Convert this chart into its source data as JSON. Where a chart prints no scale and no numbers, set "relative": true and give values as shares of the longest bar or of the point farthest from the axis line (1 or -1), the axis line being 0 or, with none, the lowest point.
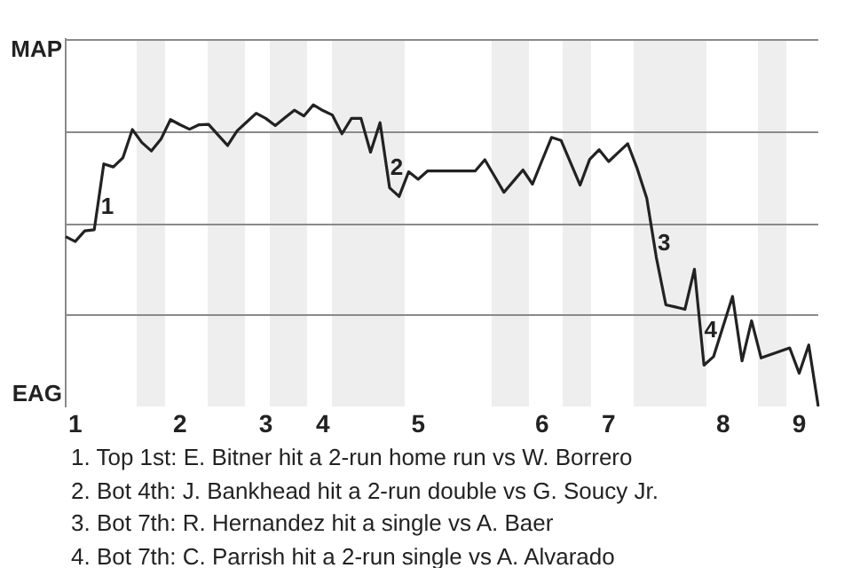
{
  "chart_data": {
    "type": "line",
    "relative": true,
    "color": "#222222",
    "legend": false,
    "grid": "y",
    "marker": "none",
    "line_style": "solid",
    "categories": [
      null,
      "1",
      null,
      null,
      null,
      null,
      null,
      null,
      null,
      null,
      null,
      null,
      "2",
      null,
      null,
      null,
      null,
      null,
      null,
      null,
      null,
      "3",
      null,
      null,
      null,
      null,
      null,
      "4",
      null,
      null,
      null,
      null,
      null,
      null,
      null,
      null,
      null,
      "5",
      null,
      null,
      null,
      null,
      null,
      null,
      null,
      null,
      null,
      null,
      null,
      null,
      "6",
      null,
      null,
      null,
      null,
      null,
      null,
      "7",
      null,
      null,
      null,
      null,
      null,
      null,
      null,
      null,
      null,
      null,
      null,
      "8",
      null,
      null,
      null,
      null,
      null,
      null,
      null,
      "9",
      null,
      null
    ],
    "values": [
      0.563,
      0.547,
      0.582,
      0.586,
      0.804,
      0.794,
      0.824,
      0.918,
      0.875,
      0.847,
      0.886,
      0.951,
      0.934,
      0.919,
      0.934,
      0.935,
      0.9,
      0.865,
      0.914,
      0.943,
      0.972,
      0.955,
      0.931,
      0.957,
      0.982,
      0.963,
      1,
      0.981,
      0.966,
      0.904,
      0.955,
      0.955,
      0.843,
      0.941,
      0.725,
      0.696,
      0.778,
      0.753,
      0.781,
      0.781,
      0.781,
      0.781,
      0.781,
      0.781,
      0.818,
      0.764,
      0.71,
      0.747,
      0.784,
      0.737,
      0.815,
      0.892,
      0.882,
      0.808,
      0.734,
      0.819,
      0.851,
      0.812,
      0.842,
      0.871,
      0.788,
      0.69,
      0.494,
      0.337,
      0.33,
      0.322,
      0.455,
      0.137,
      0.165,
      0.265,
      0.365,
      0.151,
      0.284,
      0.161,
      0.172,
      0.183,
      0.194,
      0.11,
      0.204,
      0
    ],
    "annotations": [
      "MAP",
      "EAG",
      {
        "text": "1",
        "y": 0.66
      },
      {
        "text": "2",
        "y": 0.79
      },
      {
        "text": "3",
        "y": 0.54
      },
      {
        "text": "4",
        "y": 0.25
      },
      "1. Top 1st: E. Bitner hit a 2-run home run vs W. Borrero",
      "2. Bot 4th: J. Bankhead hit a 2-run double vs G. Soucy Jr.",
      "3. Bot 7th: R. Hernandez hit a single vs A. Baer",
      "4. Bot 7th: C. Parrish hit a 2-run single vs A. Alvarado"
    ]
  }
}
